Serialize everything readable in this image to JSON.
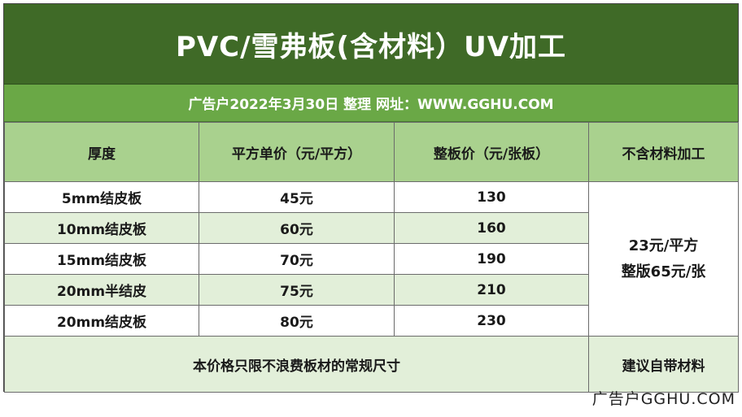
{
  "title": "PVC/雪弗板(含材料）UV加工",
  "subtitle": "广告户2022年3月30日  整理 网址：WWW.GGHU.COM",
  "headers": [
    "厚度",
    "平方单价（元/平方）",
    "整板价（元/张板）",
    "不含材料加工"
  ],
  "rows": [
    {
      "thickness": "5mm结皮板",
      "sqm_price": "45元",
      "sheet_price": "130"
    },
    {
      "thickness": "10mm结皮板",
      "sqm_price": "60元",
      "sheet_price": "160"
    },
    {
      "thickness": "15mm结皮板",
      "sqm_price": "70元",
      "sheet_price": "190"
    },
    {
      "thickness": "20mm半结皮",
      "sqm_price": "75元",
      "sheet_price": "210"
    },
    {
      "thickness": "20mm结皮板",
      "sqm_price": "80元",
      "sheet_price": "230"
    }
  ],
  "no_material": {
    "line1": "23元/平方",
    "line2": "整版65元/张"
  },
  "footer": {
    "note": "本价格只限不浪费板材的常规尺寸",
    "right": "建议自带材料"
  },
  "watermark": "广告户GGHU.COM",
  "colors": {
    "title_bg": "#3f6a27",
    "subtitle_bg": "#6aa846",
    "header_bg": "#a9d18e",
    "alt_row_bg": "#e2efd9"
  }
}
